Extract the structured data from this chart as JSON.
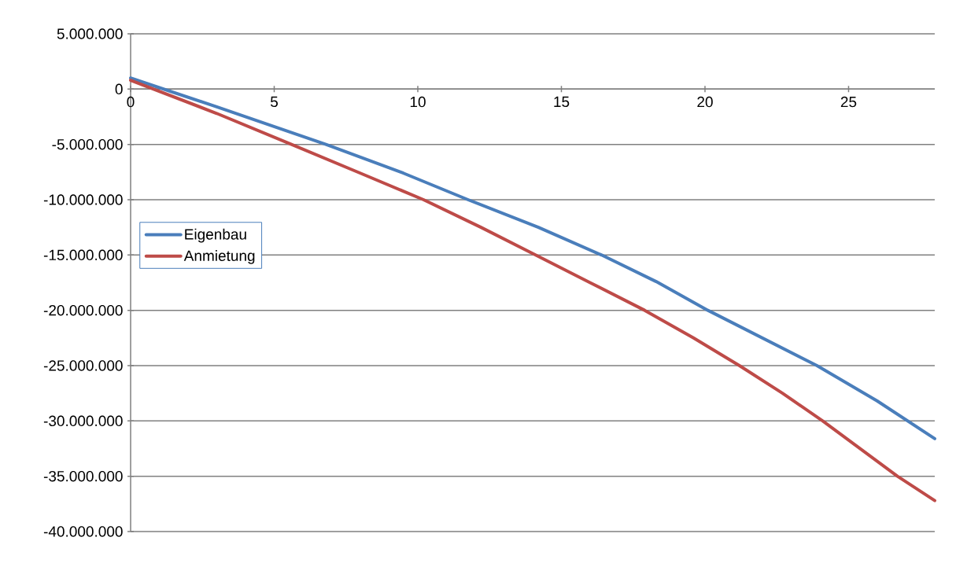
{
  "chart_data": {
    "type": "line",
    "xlim": [
      0,
      28
    ],
    "xticks": [
      0,
      5,
      10,
      15,
      20,
      25
    ],
    "ylim": [
      -40000000,
      5000000
    ],
    "yticks": [
      {
        "value": 5000000,
        "label": "5.000.000"
      },
      0,
      {
        "value": -5000000,
        "label": "-5.000.000"
      },
      {
        "value": -10000000,
        "label": "-10.000.000"
      },
      {
        "value": -15000000,
        "label": "-15.000.000"
      },
      {
        "value": -20000000,
        "label": "-20.000.000"
      },
      {
        "value": -25000000,
        "label": "-25.000.000"
      },
      {
        "value": -30000000,
        "label": "-30.000.000"
      },
      {
        "value": -35000000,
        "label": "-35.000.000"
      },
      {
        "value": -40000000,
        "label": "-40.000.000"
      }
    ],
    "grid": "y",
    "legend": "left",
    "marker": "none",
    "line_style": "solid",
    "series": [
      {
        "name": "Eigenbau",
        "color": "#4a7ebb",
        "x": [
          0,
          3,
          6.8,
          9.5,
          11.75,
          14.2,
          16.4,
          18.3,
          20.1,
          22,
          23.9,
          26,
          28
        ],
        "values": [
          1000000,
          -1600000,
          -5000000,
          -7600000,
          -10000000,
          -12500000,
          -15000000,
          -17400000,
          -20000000,
          -22500000,
          -25000000,
          -28200000,
          -31600000
        ]
      },
      {
        "name": "Anmietung",
        "color": "#be4b48",
        "x": [
          0,
          3,
          5.6,
          8,
          10.2,
          12.2,
          14.1,
          16,
          17.9,
          19.6,
          21.2,
          22.7,
          24.1,
          25.4,
          26.7,
          28
        ],
        "values": [
          800000,
          -2200000,
          -5000000,
          -7600000,
          -10000000,
          -12500000,
          -15000000,
          -17500000,
          -20000000,
          -22500000,
          -25000000,
          -27500000,
          -30000000,
          -32500000,
          -35000000,
          -37200000
        ]
      }
    ]
  }
}
